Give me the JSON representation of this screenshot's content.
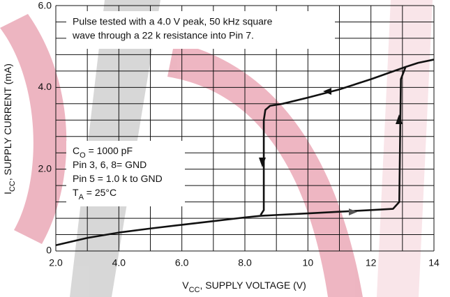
{
  "chart_data": {
    "type": "line",
    "ylabel": [
      "I",
      "CC",
      ", SUPPLY CURRENT (mA)"
    ],
    "xlabel": [
      "V",
      "CC",
      ", SUPPLY VOLTAGE (V)"
    ],
    "annotation": [
      "Pulse tested with a 4.0 V peak, 50 kHz square",
      "wave through a 22 k resistance into Pin 7."
    ],
    "conditions": [
      [
        "C",
        "O",
        " = 1000 pF"
      ],
      [
        "Pin 3, 6, 8= GND"
      ],
      [
        "Pin 5 = 1.0 k to GND"
      ],
      [
        "T",
        "A",
        " = 25°C"
      ]
    ],
    "xlim": [
      2,
      14
    ],
    "ylim": [
      0,
      6
    ],
    "grid": true,
    "xticks": [
      {
        "value": 2,
        "label": "2.0"
      },
      {
        "value": 3,
        "label": null
      },
      {
        "value": 4,
        "label": "4.0"
      },
      {
        "value": 5,
        "label": null
      },
      {
        "value": 6,
        "label": "6.0"
      },
      {
        "value": 7,
        "label": null
      },
      {
        "value": 8,
        "label": "8.0"
      },
      {
        "value": 9,
        "label": null
      },
      10,
      {
        "value": 11,
        "label": null
      },
      12,
      {
        "value": 13,
        "label": null
      },
      14
    ],
    "yticks": [
      0,
      {
        "value": 0.4,
        "label": null
      },
      {
        "value": 0.8,
        "label": null
      },
      {
        "value": 1.2,
        "label": null
      },
      {
        "value": 1.6,
        "label": null
      },
      {
        "value": 2,
        "label": "2.0"
      },
      {
        "value": 2.4,
        "label": null
      },
      {
        "value": 2.8,
        "label": null
      },
      {
        "value": 3.2,
        "label": null
      },
      {
        "value": 3.6,
        "label": null
      },
      {
        "value": 4,
        "label": "4.0"
      },
      {
        "value": 4.4,
        "label": null
      },
      {
        "value": 4.8,
        "label": null
      },
      {
        "value": 5.2,
        "label": null
      },
      {
        "value": 5.6,
        "label": null
      },
      {
        "value": 6,
        "label": "6.0"
      }
    ],
    "series": [
      {
        "color": "#111111",
        "x": [
          2.0,
          3.0,
          4.0,
          5.0,
          6.0,
          7.0,
          8.0,
          8.5,
          9.0,
          10,
          11,
          12,
          12.7,
          12.9,
          12.95,
          13.1,
          13.5,
          14
        ],
        "values": [
          0.14,
          0.32,
          0.45,
          0.55,
          0.64,
          0.73,
          0.82,
          0.86,
          0.88,
          0.92,
          0.96,
          1.0,
          1.03,
          1.2,
          4.2,
          4.5,
          4.6,
          4.68
        ]
      },
      {
        "color": "#111111",
        "x": [
          13.1,
          12,
          11,
          10,
          9.2,
          8.8,
          8.65,
          8.6,
          8.6,
          8.5
        ],
        "values": [
          4.5,
          4.2,
          3.95,
          3.75,
          3.6,
          3.55,
          3.45,
          3.2,
          1.0,
          0.88
        ]
      }
    ]
  }
}
